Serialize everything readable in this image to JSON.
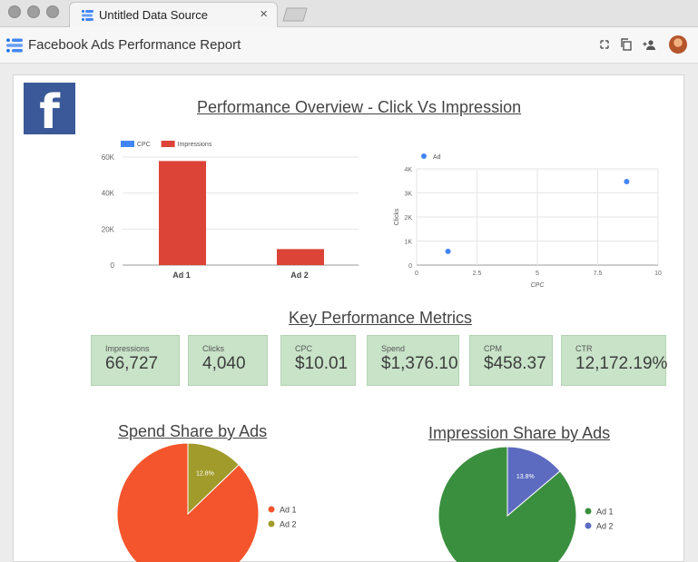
{
  "browser": {
    "tab_title": "Untitled Data Source",
    "tab_close": "×"
  },
  "app": {
    "title": "Facebook Ads Performance Report"
  },
  "logo": {
    "letter": "f",
    "color": "#3b5998"
  },
  "sections": {
    "overview_title": "Performance Overview - Click Vs Impression",
    "kpi_title": "Key Performance Metrics",
    "spend_title": "Spend Share by Ads",
    "impression_title": "Impression Share by Ads"
  },
  "kpis": [
    {
      "label": "Impressions",
      "value": "66,727"
    },
    {
      "label": "Clicks",
      "value": "4,040"
    },
    {
      "label": "CPC",
      "value": "$10.01"
    },
    {
      "label": "Spend",
      "value": "$1,376.10"
    },
    {
      "label": "CPM",
      "value": "$458.37"
    },
    {
      "label": "CTR",
      "value": "12,172.19%"
    }
  ],
  "chart_data": [
    {
      "type": "bar",
      "categories": [
        "Ad 1",
        "Ad 2"
      ],
      "series": [
        {
          "name": "CPC",
          "values": [
            1.3,
            8.7
          ],
          "color": "#4285f4"
        },
        {
          "name": "Impressions",
          "values": [
            57800,
            8900
          ],
          "color": "#db4437"
        }
      ],
      "yticks": [
        "60K",
        "40K",
        "20K",
        "0"
      ],
      "ylim": [
        0,
        60000
      ],
      "legend": "top-left",
      "grid": true
    },
    {
      "type": "scatter",
      "series": [
        {
          "name": "Ad",
          "color": "#4285f4",
          "points": [
            {
              "x": 1.3,
              "y": 570
            },
            {
              "x": 8.7,
              "y": 3470
            }
          ]
        }
      ],
      "xlabel": "CPC",
      "ylabel": "Clicks",
      "xticks": [
        "0",
        "2.5",
        "5",
        "7.5",
        "10"
      ],
      "yticks": [
        "4K",
        "3K",
        "2K",
        "1K",
        "0"
      ],
      "xlim": [
        0,
        10
      ],
      "ylim": [
        0,
        4000
      ],
      "legend": "top-left",
      "grid": true
    },
    {
      "type": "pie",
      "title": "Spend Share by Ads",
      "labels": [
        "Ad 1",
        "Ad 2"
      ],
      "values": [
        87.2,
        12.8
      ],
      "slice_labels": [
        "",
        "12.8%"
      ],
      "colors": [
        "#f4552c",
        "#a19b2c"
      ],
      "legend": "right"
    },
    {
      "type": "pie",
      "title": "Impression Share by Ads",
      "labels": [
        "Ad 1",
        "Ad 2"
      ],
      "values": [
        86.2,
        13.8
      ],
      "slice_labels": [
        "",
        "13.8%"
      ],
      "colors": [
        "#3a8f3f",
        "#5c6bc0"
      ],
      "legend": "right"
    }
  ]
}
